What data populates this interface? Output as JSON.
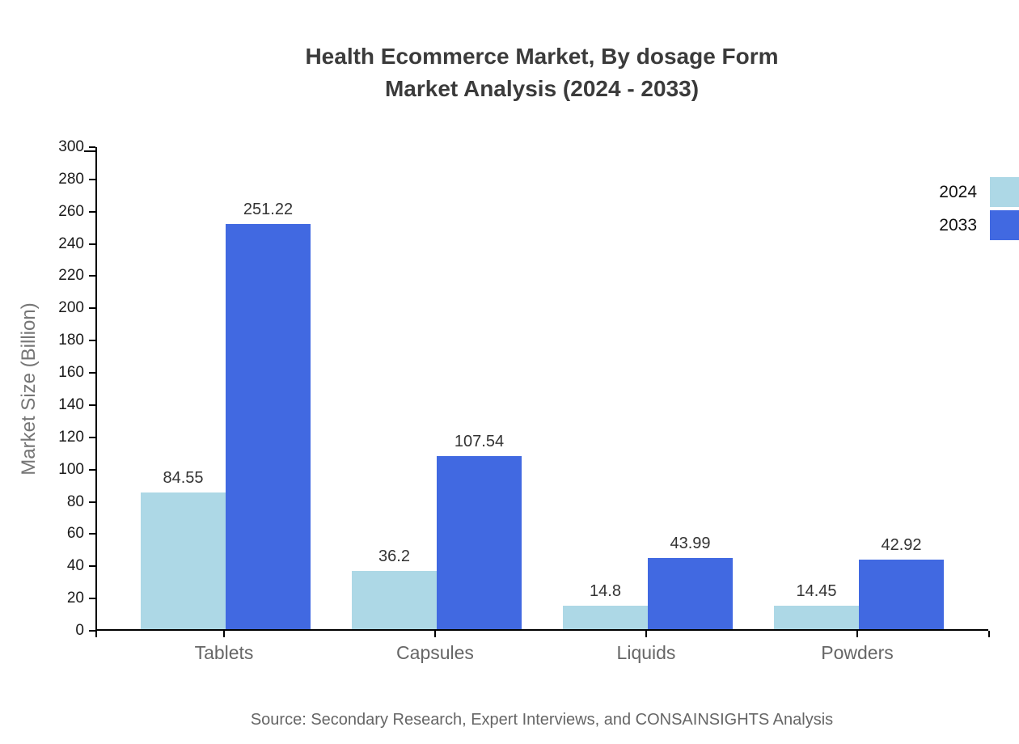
{
  "title": {
    "line1": "Health Ecommerce Market, By dosage Form",
    "line2": "Market Analysis (2024 - 2033)"
  },
  "chart_data": {
    "type": "bar",
    "categories": [
      "Tablets",
      "Capsules",
      "Liquids",
      "Powders"
    ],
    "series": [
      {
        "name": "2024",
        "color": "#add8e6",
        "values": [
          84.55,
          36.2,
          14.8,
          14.45
        ],
        "labels": [
          "84.55",
          "36.2",
          "14.8",
          "14.45"
        ]
      },
      {
        "name": "2033",
        "color": "#4169e1",
        "values": [
          251.22,
          107.54,
          43.99,
          42.92
        ],
        "labels": [
          "251.22",
          "107.54",
          "43.99",
          "42.92"
        ]
      }
    ],
    "xlabel": "",
    "ylabel": "Market Size (Billion)",
    "ylim": [
      0,
      300
    ],
    "ytick_step": 20,
    "yticks": [
      0,
      20,
      40,
      60,
      80,
      100,
      120,
      140,
      160,
      180,
      200,
      220,
      240,
      260,
      280,
      300
    ],
    "grid": false,
    "legend_position": "top-right"
  },
  "source": "Source: Secondary Research, Expert Interviews, and CONSAINSIGHTS Analysis",
  "colors": {
    "title": "#3b3b3b",
    "axis": "#000000",
    "tick_label": "#1a1a1a",
    "category_label": "#666666",
    "y_axis_title": "#767676",
    "value_label": "#333333",
    "source": "#666666",
    "background": "#ffffff"
  }
}
